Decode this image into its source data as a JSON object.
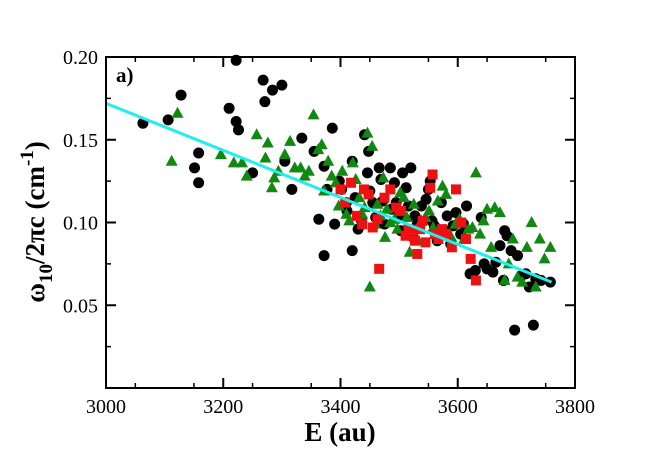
{
  "chart_data": {
    "type": "scatter",
    "panel_label": "a)",
    "xlabel": "E (au)",
    "ylabel": {
      "main": "ω",
      "sub": "10",
      "mid": "/2πc (cm",
      "sup": "-1",
      "end": ")"
    },
    "xlim": [
      3000,
      3800
    ],
    "ylim": [
      0.0,
      0.2
    ],
    "xticks": [
      3000,
      3200,
      3400,
      3600,
      3800
    ],
    "xtick_labels": [
      "3000",
      "3200",
      "3400",
      "3600",
      "3800"
    ],
    "yticks": [
      0.05,
      0.1,
      0.15,
      0.2
    ],
    "ytick_labels": [
      "0.05",
      "0.10",
      "0.15",
      "0.20"
    ],
    "grid": false,
    "colors": {
      "circles": "#000000",
      "triangles": "#118811",
      "squares": "#ee1111",
      "fit": "#22eeee"
    },
    "fit_line": {
      "name": "linear fit",
      "x": [
        3000,
        3760
      ],
      "y": [
        0.172,
        0.064
      ]
    },
    "series": [
      {
        "name": "circles",
        "marker": "circle",
        "points": [
          [
            3063,
            0.16
          ],
          [
            3106,
            0.162
          ],
          [
            3128,
            0.177
          ],
          [
            3151,
            0.133
          ],
          [
            3158,
            0.142
          ],
          [
            3158,
            0.124
          ],
          [
            3210,
            0.169
          ],
          [
            3222,
            0.198
          ],
          [
            3226,
            0.156
          ],
          [
            3222,
            0.161
          ],
          [
            3250,
            0.13
          ],
          [
            3268,
            0.186
          ],
          [
            3271,
            0.173
          ],
          [
            3284,
            0.18
          ],
          [
            3300,
            0.183
          ],
          [
            3305,
            0.137
          ],
          [
            3317,
            0.12
          ],
          [
            3334,
            0.151
          ],
          [
            3355,
            0.143
          ],
          [
            3363,
            0.102
          ],
          [
            3372,
            0.08
          ],
          [
            3372,
            0.134
          ],
          [
            3386,
            0.157
          ],
          [
            3377,
            0.12
          ],
          [
            3390,
            0.099
          ],
          [
            3398,
            0.125
          ],
          [
            3402,
            0.12
          ],
          [
            3410,
            0.112
          ],
          [
            3411,
            0.107
          ],
          [
            3420,
            0.137
          ],
          [
            3420,
            0.083
          ],
          [
            3425,
            0.115
          ],
          [
            3430,
            0.096
          ],
          [
            3436,
            0.101
          ],
          [
            3441,
            0.153
          ],
          [
            3446,
            0.13
          ],
          [
            3448,
            0.143
          ],
          [
            3450,
            0.119
          ],
          [
            3455,
            0.112
          ],
          [
            3460,
            0.103
          ],
          [
            3466,
            0.133
          ],
          [
            3469,
            0.126
          ],
          [
            3472,
            0.113
          ],
          [
            3475,
            0.099
          ],
          [
            3485,
            0.133
          ],
          [
            3487,
            0.108
          ],
          [
            3492,
            0.124
          ],
          [
            3495,
            0.112
          ],
          [
            3500,
            0.103
          ],
          [
            3503,
            0.095
          ],
          [
            3506,
            0.13
          ],
          [
            3512,
            0.121
          ],
          [
            3516,
            0.11
          ],
          [
            3520,
            0.133
          ],
          [
            3524,
            0.091
          ],
          [
            3527,
            0.104
          ],
          [
            3531,
            0.099
          ],
          [
            3538,
            0.11
          ],
          [
            3546,
            0.114
          ],
          [
            3550,
            0.12
          ],
          [
            3553,
            0.125
          ],
          [
            3556,
            0.101
          ],
          [
            3560,
            0.098
          ],
          [
            3565,
            0.089
          ],
          [
            3572,
            0.112
          ],
          [
            3578,
            0.095
          ],
          [
            3582,
            0.104
          ],
          [
            3588,
            0.087
          ],
          [
            3592,
            0.098
          ],
          [
            3597,
            0.106
          ],
          [
            3605,
            0.093
          ],
          [
            3610,
            0.099
          ],
          [
            3615,
            0.11
          ],
          [
            3621,
            0.069
          ],
          [
            3630,
            0.071
          ],
          [
            3640,
            0.103
          ],
          [
            3645,
            0.075
          ],
          [
            3650,
            0.072
          ],
          [
            3660,
            0.07
          ],
          [
            3665,
            0.076
          ],
          [
            3672,
            0.086
          ],
          [
            3678,
            0.065
          ],
          [
            3680,
            0.095
          ],
          [
            3684,
            0.092
          ],
          [
            3691,
            0.083
          ],
          [
            3697,
            0.035
          ],
          [
            3702,
            0.08
          ],
          [
            3709,
            0.068
          ],
          [
            3716,
            0.069
          ],
          [
            3722,
            0.061
          ],
          [
            3729,
            0.038
          ],
          [
            3733,
            0.066
          ],
          [
            3742,
            0.065
          ],
          [
            3758,
            0.064
          ]
        ]
      },
      {
        "name": "triangles",
        "marker": "triangle",
        "points": [
          [
            3112,
            0.137
          ],
          [
            3122,
            0.166
          ],
          [
            3196,
            0.141
          ],
          [
            3218,
            0.136
          ],
          [
            3232,
            0.136
          ],
          [
            3240,
            0.128
          ],
          [
            3257,
            0.153
          ],
          [
            3272,
            0.139
          ],
          [
            3276,
            0.148
          ],
          [
            3283,
            0.121
          ],
          [
            3287,
            0.127
          ],
          [
            3294,
            0.131
          ],
          [
            3305,
            0.141
          ],
          [
            3314,
            0.149
          ],
          [
            3322,
            0.133
          ],
          [
            3332,
            0.133
          ],
          [
            3339,
            0.128
          ],
          [
            3346,
            0.131
          ],
          [
            3354,
            0.165
          ],
          [
            3362,
            0.144
          ],
          [
            3368,
            0.147
          ],
          [
            3372,
            0.119
          ],
          [
            3379,
            0.137
          ],
          [
            3385,
            0.128
          ],
          [
            3392,
            0.124
          ],
          [
            3397,
            0.11
          ],
          [
            3403,
            0.131
          ],
          [
            3410,
            0.105
          ],
          [
            3415,
            0.101
          ],
          [
            3421,
            0.136
          ],
          [
            3426,
            0.126
          ],
          [
            3432,
            0.115
          ],
          [
            3437,
            0.105
          ],
          [
            3441,
            0.109
          ],
          [
            3446,
            0.154
          ],
          [
            3450,
            0.061
          ],
          [
            3454,
            0.146
          ],
          [
            3459,
            0.099
          ],
          [
            3463,
            0.111
          ],
          [
            3468,
            0.104
          ],
          [
            3473,
            0.127
          ],
          [
            3476,
            0.091
          ],
          [
            3479,
            0.108
          ],
          [
            3485,
            0.1
          ],
          [
            3492,
            0.102
          ],
          [
            3497,
            0.096
          ],
          [
            3502,
            0.118
          ],
          [
            3508,
            0.115
          ],
          [
            3513,
            0.103
          ],
          [
            3518,
            0.082
          ],
          [
            3525,
            0.111
          ],
          [
            3532,
            0.089
          ],
          [
            3538,
            0.101
          ],
          [
            3545,
            0.103
          ],
          [
            3551,
            0.107
          ],
          [
            3558,
            0.097
          ],
          [
            3566,
            0.113
          ],
          [
            3574,
            0.122
          ],
          [
            3580,
            0.117
          ],
          [
            3589,
            0.091
          ],
          [
            3596,
            0.099
          ],
          [
            3603,
            0.102
          ],
          [
            3611,
            0.09
          ],
          [
            3618,
            0.096
          ],
          [
            3625,
            0.097
          ],
          [
            3631,
            0.13
          ],
          [
            3638,
            0.093
          ],
          [
            3644,
            0.101
          ],
          [
            3650,
            0.108
          ],
          [
            3657,
            0.085
          ],
          [
            3663,
            0.109
          ],
          [
            3672,
            0.106
          ],
          [
            3680,
            0.065
          ],
          [
            3687,
            0.075
          ],
          [
            3694,
            0.09
          ],
          [
            3702,
            0.067
          ],
          [
            3710,
            0.064
          ],
          [
            3718,
            0.085
          ],
          [
            3726,
            0.1
          ],
          [
            3733,
            0.061
          ],
          [
            3740,
            0.09
          ],
          [
            3748,
            0.078
          ],
          [
            3758,
            0.085
          ]
        ]
      },
      {
        "name": "squares",
        "marker": "square",
        "points": [
          [
            3400,
            0.12
          ],
          [
            3408,
            0.112
          ],
          [
            3418,
            0.124
          ],
          [
            3428,
            0.104
          ],
          [
            3437,
            0.099
          ],
          [
            3440,
            0.12
          ],
          [
            3448,
            0.117
          ],
          [
            3455,
            0.097
          ],
          [
            3463,
            0.102
          ],
          [
            3466,
            0.072
          ],
          [
            3475,
            0.115
          ],
          [
            3485,
            0.12
          ],
          [
            3495,
            0.109
          ],
          [
            3503,
            0.107
          ],
          [
            3511,
            0.092
          ],
          [
            3516,
            0.096
          ],
          [
            3522,
            0.095
          ],
          [
            3527,
            0.089
          ],
          [
            3531,
            0.081
          ],
          [
            3536,
            0.096
          ],
          [
            3540,
            0.101
          ],
          [
            3545,
            0.088
          ],
          [
            3553,
            0.121
          ],
          [
            3557,
            0.129
          ],
          [
            3561,
            0.093
          ],
          [
            3567,
            0.09
          ],
          [
            3573,
            0.096
          ],
          [
            3580,
            0.093
          ],
          [
            3590,
            0.085
          ],
          [
            3597,
            0.12
          ],
          [
            3606,
            0.1
          ],
          [
            3614,
            0.09
          ],
          [
            3622,
            0.078
          ],
          [
            3631,
            0.065
          ]
        ]
      }
    ]
  }
}
